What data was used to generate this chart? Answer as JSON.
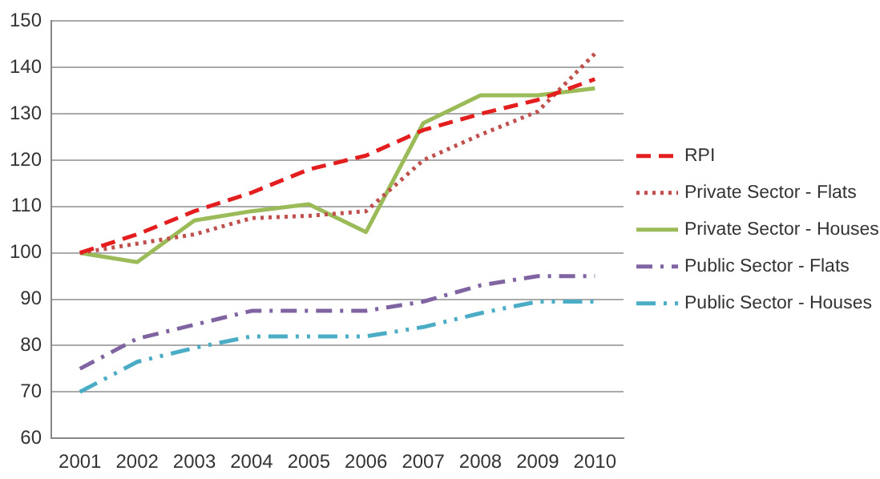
{
  "chart_data": {
    "type": "line",
    "categories": [
      "2001",
      "2002",
      "2003",
      "2004",
      "2005",
      "2006",
      "2007",
      "2008",
      "2009",
      "2010"
    ],
    "series": [
      {
        "name": "RPI",
        "color": "#e41e1e",
        "line_style": "dashed",
        "values": [
          100,
          104,
          109,
          113,
          118,
          121,
          126.5,
          130,
          133,
          137.5
        ]
      },
      {
        "name": "Private Sector - Flats",
        "color": "#c0504d",
        "line_style": "dotted",
        "values": [
          100,
          102,
          104,
          107.5,
          108,
          109,
          120,
          125.5,
          130.5,
          143
        ]
      },
      {
        "name": "Private Sector - Houses",
        "color": "#9bbb59",
        "line_style": "solid",
        "values": [
          100,
          98,
          107,
          109,
          110.5,
          104.5,
          128,
          134,
          134,
          135.5
        ]
      },
      {
        "name": "Public Sector - Flats",
        "color": "#8064a2",
        "line_style": "dashdot",
        "values": [
          75,
          81.5,
          84.5,
          87.5,
          87.5,
          87.5,
          89.5,
          93,
          95,
          95
        ]
      },
      {
        "name": "Public Sector - Houses",
        "color": "#4bacc6",
        "line_style": "dashdotdot",
        "values": [
          70,
          76.5,
          79.5,
          82,
          82,
          82,
          84,
          87,
          89.5,
          89.5
        ]
      }
    ],
    "ylim": [
      60,
      150
    ],
    "yticks": [
      60,
      70,
      80,
      90,
      100,
      110,
      120,
      130,
      140,
      150
    ],
    "grid": "y",
    "legend": "right",
    "marker": "none"
  }
}
